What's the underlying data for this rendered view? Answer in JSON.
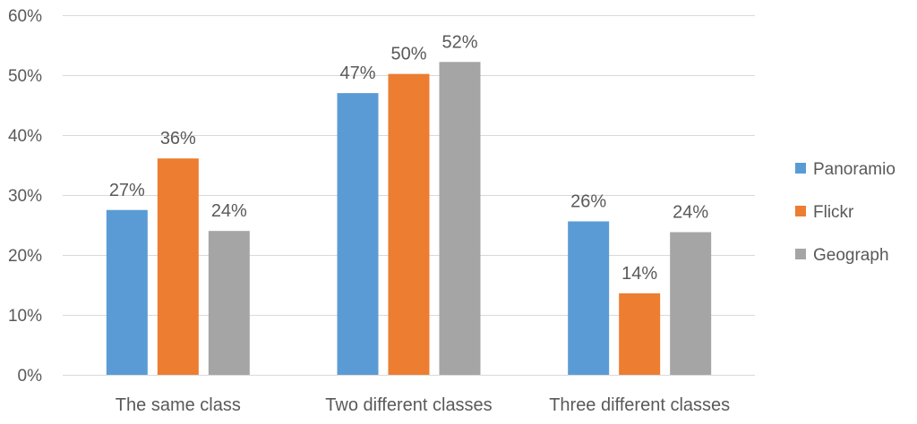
{
  "chart_data": {
    "type": "bar",
    "title": "",
    "xlabel": "",
    "ylabel": "",
    "categories": [
      "The same class",
      "Two different classes",
      "Three different classes"
    ],
    "series": [
      {
        "name": "Panoramio",
        "values": [
          27.5,
          47.0,
          25.6
        ],
        "labels": [
          "27%",
          "47%",
          "26%"
        ],
        "color": "#5b9bd5"
      },
      {
        "name": "Flickr",
        "values": [
          36.1,
          50.2,
          13.6
        ],
        "labels": [
          "36%",
          "50%",
          "14%"
        ],
        "color": "#ed7d31"
      },
      {
        "name": "Geograph",
        "values": [
          24.0,
          52.2,
          23.8
        ],
        "labels": [
          "24%",
          "52%",
          "24%"
        ],
        "color": "#a5a5a5"
      }
    ],
    "ylim": [
      0,
      60
    ],
    "yticks": [
      {
        "value": 0,
        "label": "0%"
      },
      {
        "value": 10,
        "label": "10%"
      },
      {
        "value": 20,
        "label": "20%"
      },
      {
        "value": 30,
        "label": "30%"
      },
      {
        "value": 40,
        "label": "40%"
      },
      {
        "value": 50,
        "label": "50%"
      },
      {
        "value": 60,
        "label": "60%"
      }
    ],
    "grid": true,
    "legend_position": "right"
  }
}
